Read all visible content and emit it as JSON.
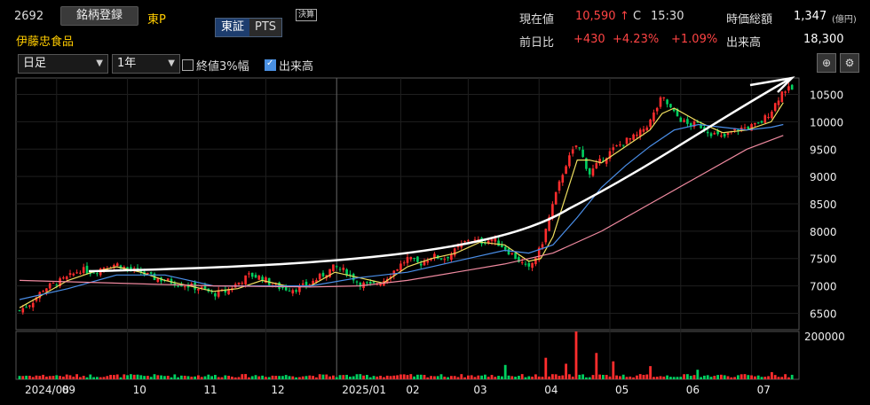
{
  "header": {
    "code": "2692",
    "register_label": "銘柄登録",
    "market": "東P",
    "name": "伊藤忠食品",
    "exchange_tab": "東証",
    "pts_tab": "PTS",
    "settle_badge": "決算",
    "price_label": "現在値",
    "price": "10,590",
    "price_arrow": "↑",
    "price_flag": "C",
    "price_time": "15:30",
    "prev_label": "前日比",
    "change": "+430",
    "change_pct": "+4.23%",
    "change_extra": "+1.09%",
    "mcap_label": "時価総額",
    "mcap": "1,347",
    "mcap_unit": "(億円)",
    "volume_label": "出来高",
    "volume": "18,300"
  },
  "toolbar": {
    "period": "日足",
    "range": "1年",
    "close3_label": "終値3%幅",
    "volume_check_label": "出来高"
  },
  "colors": {
    "up": "#ff2d2d",
    "down": "#00d060",
    "ma_short": "#f0e060",
    "ma_mid": "#4a8ee8",
    "ma_long": "#f08aa0"
  },
  "chart_data": {
    "type": "candlestick",
    "price_ylim": [
      6200,
      10800
    ],
    "price_ticks": [
      "10500",
      "10000",
      "9500",
      "9000",
      "8500",
      "8000",
      "7500",
      "7000",
      "6500"
    ],
    "volume_ylim": [
      0,
      200000
    ],
    "volume_ticks": [
      "200000"
    ],
    "x_labels": [
      "2024/08",
      "09",
      "10",
      "11",
      "12",
      "2025/01",
      "02",
      "03",
      "04",
      "05",
      "06",
      "07"
    ],
    "series": [
      {
        "name": "close",
        "points": [
          [
            0,
            6550
          ],
          [
            2,
            6700
          ],
          [
            4,
            6950
          ],
          [
            6,
            7050
          ],
          [
            8,
            7150
          ],
          [
            10,
            7300
          ],
          [
            12,
            7250
          ],
          [
            14,
            7350
          ],
          [
            16,
            7400
          ],
          [
            18,
            7300
          ],
          [
            20,
            7250
          ],
          [
            22,
            7150
          ],
          [
            24,
            7100
          ],
          [
            26,
            7050
          ],
          [
            28,
            7000
          ],
          [
            30,
            6950
          ],
          [
            32,
            6850
          ],
          [
            34,
            6900
          ],
          [
            36,
            7050
          ],
          [
            38,
            7200
          ],
          [
            40,
            7150
          ],
          [
            42,
            7000
          ],
          [
            44,
            6950
          ],
          [
            46,
            6950
          ],
          [
            48,
            7050
          ],
          [
            50,
            7200
          ],
          [
            52,
            7350
          ],
          [
            54,
            7250
          ],
          [
            56,
            7050
          ],
          [
            58,
            7000
          ],
          [
            60,
            7100
          ],
          [
            62,
            7300
          ],
          [
            64,
            7500
          ],
          [
            66,
            7400
          ],
          [
            68,
            7550
          ],
          [
            70,
            7500
          ],
          [
            72,
            7650
          ],
          [
            74,
            7850
          ],
          [
            76,
            7800
          ],
          [
            78,
            7850
          ],
          [
            80,
            7700
          ],
          [
            82,
            7500
          ],
          [
            84,
            7300
          ],
          [
            86,
            7700
          ],
          [
            88,
            8500
          ],
          [
            90,
            9200
          ],
          [
            92,
            9600
          ],
          [
            94,
            9050
          ],
          [
            96,
            9300
          ],
          [
            98,
            9500
          ],
          [
            100,
            9650
          ],
          [
            102,
            9750
          ],
          [
            104,
            10000
          ],
          [
            106,
            10450
          ],
          [
            108,
            10150
          ],
          [
            110,
            9950
          ],
          [
            112,
            9950
          ],
          [
            114,
            9800
          ],
          [
            116,
            9700
          ],
          [
            118,
            9850
          ],
          [
            120,
            9900
          ],
          [
            122,
            9950
          ],
          [
            124,
            10200
          ],
          [
            126,
            10590
          ]
        ]
      },
      {
        "name": "ma_short",
        "points": [
          [
            0,
            6600
          ],
          [
            4,
            6850
          ],
          [
            8,
            7100
          ],
          [
            12,
            7250
          ],
          [
            16,
            7350
          ],
          [
            20,
            7250
          ],
          [
            24,
            7100
          ],
          [
            28,
            7000
          ],
          [
            32,
            6900
          ],
          [
            36,
            6950
          ],
          [
            40,
            7100
          ],
          [
            44,
            7000
          ],
          [
            48,
            7000
          ],
          [
            52,
            7250
          ],
          [
            56,
            7150
          ],
          [
            60,
            7050
          ],
          [
            64,
            7350
          ],
          [
            68,
            7500
          ],
          [
            72,
            7600
          ],
          [
            76,
            7800
          ],
          [
            80,
            7750
          ],
          [
            84,
            7450
          ],
          [
            86,
            7500
          ],
          [
            88,
            7900
          ],
          [
            90,
            8600
          ],
          [
            92,
            9300
          ],
          [
            94,
            9300
          ],
          [
            96,
            9250
          ],
          [
            100,
            9550
          ],
          [
            104,
            9850
          ],
          [
            106,
            10150
          ],
          [
            108,
            10250
          ],
          [
            112,
            10000
          ],
          [
            116,
            9800
          ],
          [
            120,
            9850
          ],
          [
            124,
            10000
          ],
          [
            126,
            10350
          ]
        ]
      },
      {
        "name": "ma_mid",
        "points": [
          [
            0,
            6750
          ],
          [
            8,
            6950
          ],
          [
            16,
            7200
          ],
          [
            24,
            7200
          ],
          [
            32,
            7000
          ],
          [
            40,
            7000
          ],
          [
            48,
            7000
          ],
          [
            56,
            7150
          ],
          [
            64,
            7250
          ],
          [
            72,
            7450
          ],
          [
            80,
            7650
          ],
          [
            84,
            7600
          ],
          [
            88,
            7750
          ],
          [
            92,
            8250
          ],
          [
            96,
            8800
          ],
          [
            100,
            9200
          ],
          [
            104,
            9550
          ],
          [
            108,
            9850
          ],
          [
            112,
            9950
          ],
          [
            116,
            9900
          ],
          [
            120,
            9850
          ],
          [
            124,
            9900
          ],
          [
            126,
            9950
          ]
        ]
      },
      {
        "name": "ma_long",
        "points": [
          [
            0,
            7100
          ],
          [
            16,
            7050
          ],
          [
            32,
            7000
          ],
          [
            48,
            6980
          ],
          [
            56,
            7000
          ],
          [
            64,
            7100
          ],
          [
            72,
            7250
          ],
          [
            80,
            7400
          ],
          [
            88,
            7600
          ],
          [
            96,
            8000
          ],
          [
            104,
            8500
          ],
          [
            112,
            9000
          ],
          [
            120,
            9500
          ],
          [
            126,
            9750
          ]
        ]
      }
    ],
    "volume_spikes": [
      [
        92,
        200000
      ],
      [
        95,
        110000
      ],
      [
        98,
        75000
      ],
      [
        80,
        60000
      ],
      [
        87,
        90000
      ],
      [
        90,
        65000
      ],
      [
        104,
        55000
      ],
      [
        112,
        40000
      ],
      [
        124,
        30000
      ]
    ]
  }
}
